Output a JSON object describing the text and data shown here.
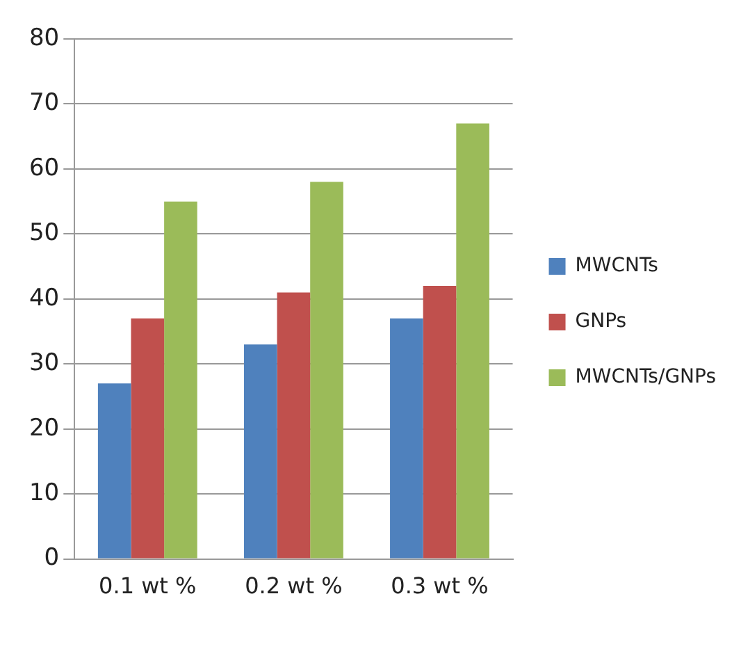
{
  "chart_data": {
    "type": "bar",
    "categories": [
      "0.1 wt %",
      "0.2 wt %",
      "0.3 wt %"
    ],
    "series": [
      {
        "name": "MWCNTs",
        "color": "#4f81bd",
        "values": [
          27,
          33,
          37
        ]
      },
      {
        "name": "GNPs",
        "color": "#c0504d",
        "values": [
          37,
          41,
          42
        ]
      },
      {
        "name": "MWCNTs/GNPs",
        "color": "#9bbb59",
        "values": [
          55,
          58,
          67
        ]
      }
    ],
    "ylim": [
      0,
      80
    ],
    "yticks": [
      0,
      10,
      20,
      30,
      40,
      50,
      60,
      70,
      80
    ],
    "grid": "y",
    "legend": "right"
  }
}
